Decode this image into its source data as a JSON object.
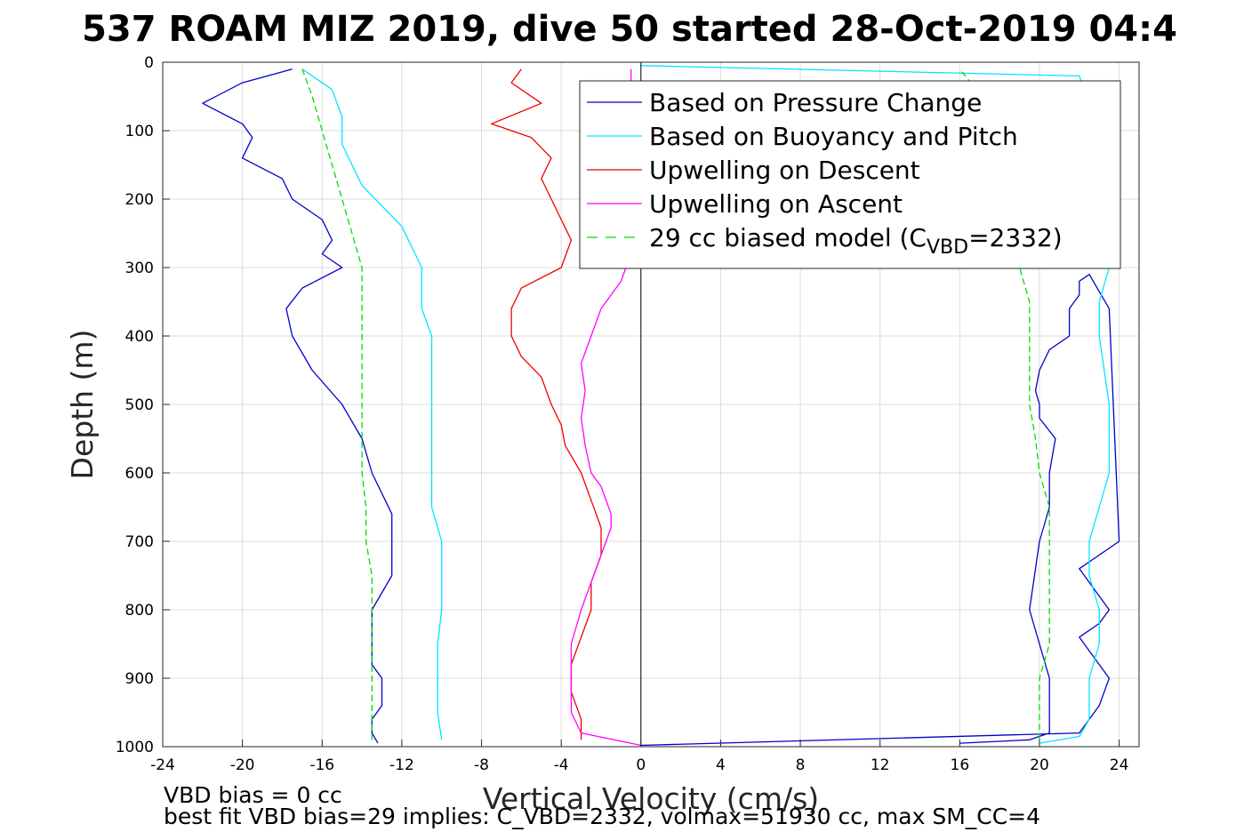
{
  "chart_data": {
    "type": "line",
    "title": "537 ROAM MIZ 2019, dive 50 started 28-Oct-2019 04:4",
    "xlabel": "Vertical Velocity (cm/s)",
    "ylabel": "Depth (m)",
    "xlim": [
      -24,
      25
    ],
    "ylim": [
      0,
      1000
    ],
    "y_reversed": true,
    "grid": true,
    "legend_position": "top-right",
    "xticks": [
      -24,
      -20,
      -16,
      -12,
      -8,
      -4,
      0,
      4,
      8,
      12,
      16,
      20,
      24
    ],
    "yticks": [
      0,
      100,
      200,
      300,
      400,
      500,
      600,
      700,
      800,
      900,
      1000
    ],
    "xtick_labels": [
      "-24",
      "-20",
      "-16",
      "-12",
      "-8",
      "-4",
      "0",
      "4",
      "8",
      "12",
      "16",
      "20",
      "24"
    ],
    "ytick_labels": [
      "0",
      "100",
      "200",
      "300",
      "400",
      "500",
      "600",
      "700",
      "800",
      "900",
      "1000"
    ],
    "legend_entries": [
      {
        "label": "Based on Pressure Change",
        "color": "#0000cc",
        "dash": "solid"
      },
      {
        "label": "Based on Buoyancy and Pitch",
        "color": "#00e5ff",
        "dash": "solid"
      },
      {
        "label": "Upwelling on Descent",
        "color": "#ee0000",
        "dash": "solid"
      },
      {
        "label": "Upwelling on Ascent",
        "color": "#ff00ff",
        "dash": "solid"
      },
      {
        "label_prefix": "29 cc biased model (C",
        "label_sub": "VBD",
        "label_suffix": "=2332)",
        "color": "#00dd00",
        "dash": "dashed"
      }
    ],
    "series": [
      {
        "name": "Based on Pressure Change",
        "segment": "descent",
        "color": "#0000cc",
        "x": [
          -17.5,
          -20,
          -22,
          -20,
          -19.5,
          -20,
          -18,
          -17.5,
          -16,
          -15.5,
          -16,
          -15,
          -17,
          -17.8,
          -17.5,
          -16.5,
          -15,
          -14,
          -13.5,
          -13,
          -12.5,
          -12.5,
          -12.5,
          -13.5,
          -13.5,
          -13.5,
          -13,
          -13,
          -13.5,
          -13.5,
          -13.2
        ],
        "y": [
          10,
          30,
          60,
          90,
          110,
          140,
          170,
          200,
          230,
          260,
          280,
          300,
          330,
          360,
          400,
          450,
          500,
          550,
          600,
          630,
          660,
          700,
          750,
          800,
          850,
          880,
          900,
          940,
          960,
          980,
          995
        ]
      },
      {
        "name": "Based on Pressure Change",
        "segment": "ascent",
        "color": "#0000cc",
        "x": [
          16,
          19.5,
          20.5,
          20.5,
          19.5,
          20,
          20.5,
          20.5,
          20.8,
          20,
          20,
          19.8,
          20,
          20.5,
          21.5,
          21.5,
          21.5,
          22,
          22,
          22.5,
          23.5,
          24,
          22,
          23,
          23.5,
          23,
          22,
          22.5,
          23,
          23.5,
          23,
          22,
          0
        ],
        "y": [
          995,
          990,
          980,
          900,
          800,
          700,
          650,
          600,
          550,
          520,
          500,
          480,
          450,
          420,
          400,
          380,
          360,
          340,
          320,
          310,
          360,
          700,
          740,
          780,
          800,
          820,
          840,
          860,
          880,
          900,
          940,
          980,
          998
        ]
      },
      {
        "name": "Based on Buoyancy and Pitch",
        "segment": "descent",
        "color": "#00e5ff",
        "x": [
          -17,
          -15.5,
          -15,
          -15,
          -14.5,
          -14,
          -13,
          -12,
          -11.5,
          -11,
          -11,
          -11,
          -10.5,
          -10.5,
          -10.5,
          -10.5,
          -10.5,
          -10.5,
          -10,
          -10,
          -10,
          -10.2,
          -10.2,
          -10.2,
          -10
        ],
        "y": [
          10,
          40,
          80,
          120,
          150,
          180,
          210,
          240,
          270,
          300,
          330,
          360,
          400,
          450,
          500,
          550,
          600,
          650,
          700,
          750,
          800,
          850,
          900,
          950,
          990
        ]
      },
      {
        "name": "Based on Buoyancy and Pitch",
        "segment": "ascent",
        "color": "#00e5ff",
        "x": [
          20,
          22,
          22.5,
          22.5,
          23,
          23,
          22.5,
          22.5,
          23,
          23.5,
          23.5,
          23.5,
          23,
          23,
          23.5,
          23.5,
          23,
          22,
          0
        ],
        "y": [
          995,
          985,
          960,
          900,
          850,
          800,
          750,
          700,
          650,
          600,
          580,
          500,
          400,
          350,
          300,
          200,
          100,
          20,
          5
        ]
      },
      {
        "name": "Upwelling on Descent",
        "color": "#ee0000",
        "x": [
          -6,
          -6.5,
          -5,
          -7.5,
          -5.5,
          -4.5,
          -5,
          -4.5,
          -4,
          -3.5,
          -4,
          -6,
          -6.5,
          -6.5,
          -6,
          -5,
          -4.5,
          -4,
          -3.8,
          -3,
          -2.5,
          -2,
          -2,
          -2.5,
          -2.5,
          -3,
          -3.5,
          -3.5,
          -3,
          -3
        ],
        "y": [
          10,
          30,
          60,
          90,
          110,
          140,
          170,
          200,
          230,
          260,
          300,
          330,
          360,
          400,
          430,
          460,
          500,
          530,
          560,
          600,
          640,
          680,
          720,
          760,
          800,
          840,
          880,
          920,
          960,
          990
        ]
      },
      {
        "name": "Upwelling on Ascent",
        "color": "#ff00ff",
        "x": [
          0,
          -3,
          -3.5,
          -3.5,
          -3.5,
          -3,
          -2.5,
          -2,
          -1.5,
          -1.5,
          -2,
          -2.5,
          -2.8,
          -3,
          -2.8,
          -3,
          -2.5,
          -2,
          -1,
          -0.5,
          -0.5,
          -0.2,
          -0.5,
          -0.5,
          -0.5
        ],
        "y": [
          998,
          980,
          950,
          900,
          850,
          800,
          760,
          720,
          680,
          660,
          620,
          600,
          560,
          520,
          480,
          440,
          400,
          360,
          320,
          280,
          240,
          200,
          150,
          100,
          10
        ]
      },
      {
        "name": "29 cc biased model (CVBD=2332)",
        "segment": "descent",
        "color": "#00dd00",
        "x": [
          -17,
          -16.5,
          -16,
          -15.5,
          -15,
          -14.5,
          -14,
          -14,
          -14,
          -14,
          -14,
          -14,
          -14,
          -13.8,
          -13.8,
          -13.5,
          -13.5,
          -13.5,
          -13.5,
          -13.5
        ],
        "y": [
          10,
          50,
          100,
          150,
          200,
          250,
          300,
          350,
          400,
          450,
          500,
          550,
          600,
          650,
          700,
          750,
          800,
          850,
          900,
          990
        ]
      },
      {
        "name": "29 cc biased model (CVBD=2332)",
        "segment": "ascent",
        "color": "#00dd00",
        "x": [
          20,
          20,
          20,
          20.5,
          20.5,
          20.5,
          20.5,
          20.5,
          20,
          19.8,
          19.5,
          19.5,
          19.5,
          19.5,
          19,
          18.5,
          18.5,
          16
        ],
        "y": [
          990,
          950,
          900,
          850,
          800,
          750,
          700,
          650,
          600,
          550,
          500,
          450,
          400,
          350,
          300,
          200,
          100,
          10
        ]
      }
    ]
  },
  "annotations": {
    "line1": "VBD bias = 0 cc",
    "line2": "best fit VBD bias=29 implies: C_VBD=2332, volmax=51930 cc, max SM_CC=4"
  }
}
